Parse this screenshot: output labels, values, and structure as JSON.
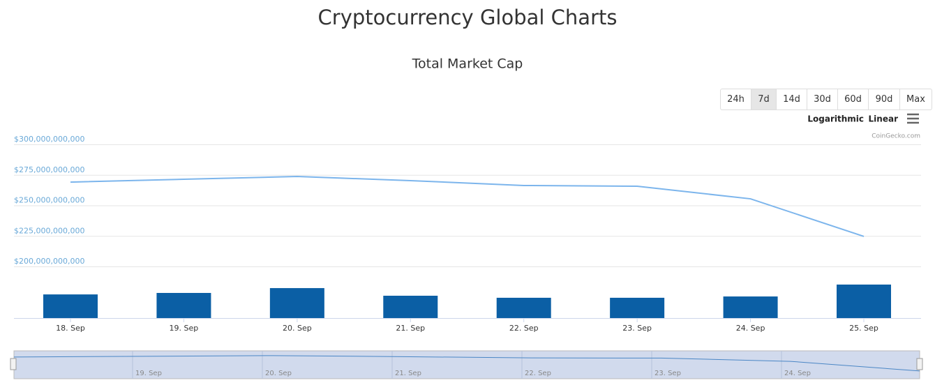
{
  "page_title": "Cryptocurrency Global Charts",
  "range_buttons": [
    "24h",
    "7d",
    "14d",
    "30d",
    "60d",
    "90d",
    "Max"
  ],
  "selected_range": 1,
  "scale_options": [
    "Logarithmic",
    "Linear"
  ],
  "credit": "CoinGecko.com",
  "chart_data": {
    "type": "line",
    "title": "Total Market Cap",
    "categories": [
      "18. Sep",
      "19. Sep",
      "20. Sep",
      "21. Sep",
      "22. Sep",
      "23. Sep",
      "24. Sep",
      "25. Sep"
    ],
    "series": [
      {
        "color": "#7cb5ec",
        "values": [
          269100000000,
          271400000000,
          273700000000,
          270300000000,
          266300000000,
          265700000000,
          255400000000,
          224600000000
        ]
      },
      {
        "type": "bar",
        "axis": "y2",
        "color": "#0b5fa5",
        "values": [
          12700000000,
          13500000000,
          16100000000,
          12000000000,
          10900000000,
          10900000000,
          11600000000,
          18000000000
        ]
      }
    ],
    "ylim": [
      200000000000,
      300000000000
    ],
    "yticks": [
      {
        "value": 200000000000,
        "label": "$200,000,000,000"
      },
      {
        "value": 225000000000,
        "label": "$225,000,000,000"
      },
      {
        "value": 250000000000,
        "label": "$250,000,000,000"
      },
      {
        "value": 275000000000,
        "label": "$275,000,000,000"
      },
      {
        "value": 300000000000,
        "label": "$300,000,000,000"
      }
    ],
    "y2lim": [
      0,
      30000000000
    ],
    "grid": true
  }
}
